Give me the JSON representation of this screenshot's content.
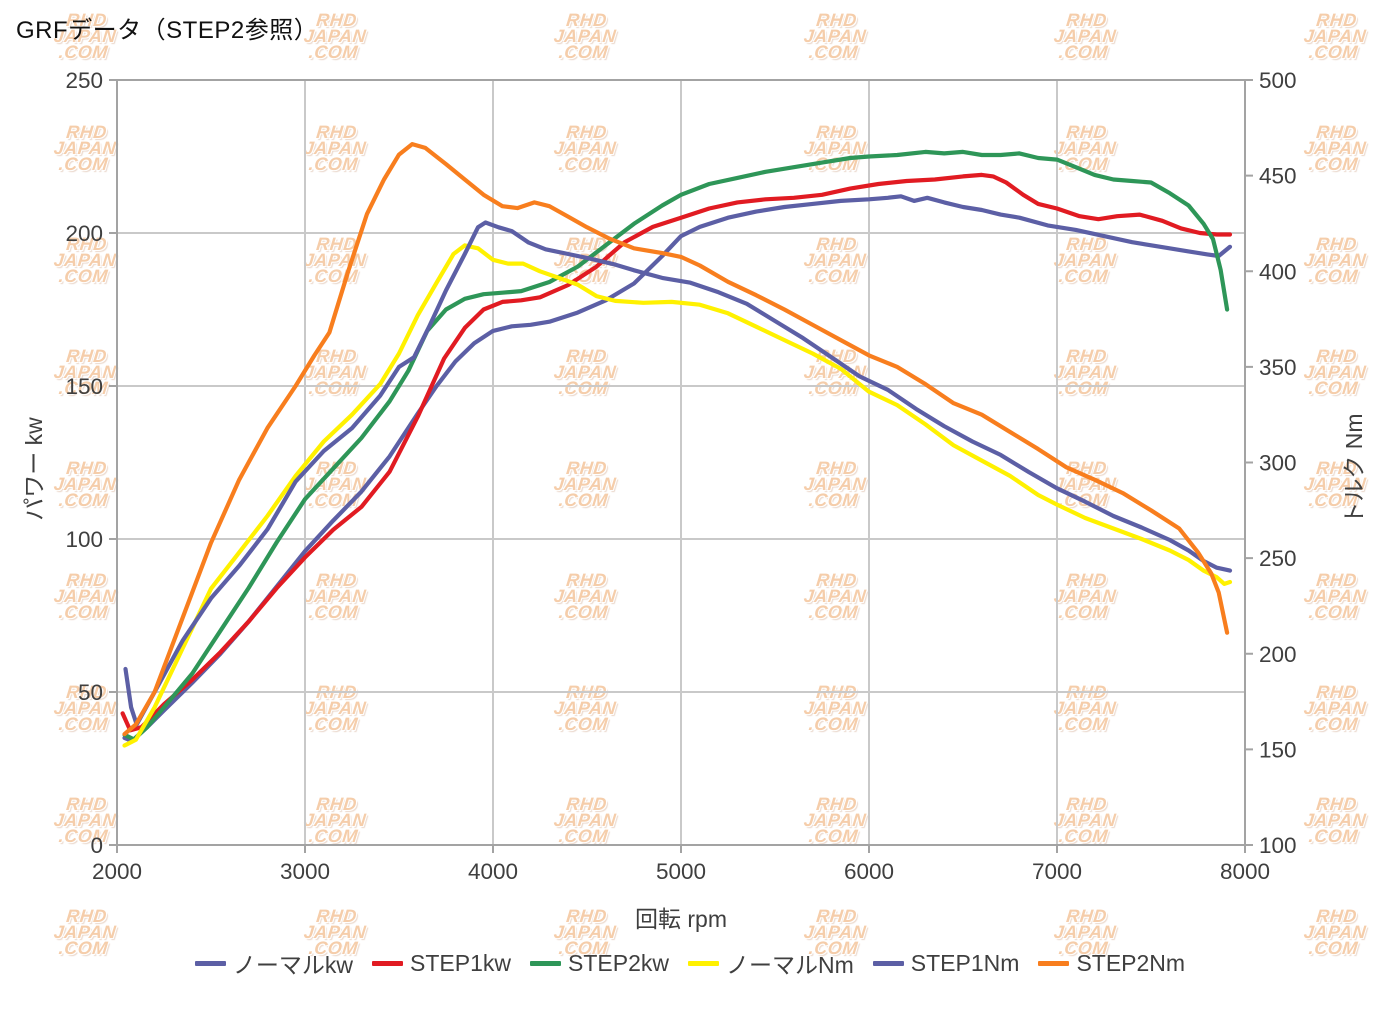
{
  "title": "GRFデータ（STEP2参照）",
  "watermark": {
    "lines": [
      "RHD",
      "JAPAN",
      ".COM"
    ]
  },
  "colors": {
    "grid": "#c9c9c9",
    "plot_border": "#a3a3a3",
    "tick": "#a3a3a3",
    "text": "#3f3f3f"
  },
  "chart_data": {
    "type": "line",
    "title": "GRFデータ（STEP2参照）",
    "grid": true,
    "legend_position": "bottom",
    "x_axis": {
      "label": "回転 rpm",
      "min": 2000,
      "max": 8000,
      "ticks": [
        2000,
        3000,
        4000,
        5000,
        6000,
        7000,
        8000
      ]
    },
    "y_left_axis": {
      "label": "パワー kw",
      "min": 0,
      "max": 250,
      "ticks": [
        0,
        50,
        100,
        150,
        200,
        250
      ]
    },
    "y_right_axis": {
      "label": "トルク Nm",
      "min": 100,
      "max": 500,
      "ticks": [
        100,
        150,
        200,
        250,
        300,
        350,
        400,
        450,
        500
      ]
    },
    "series": [
      {
        "name": "ノーマルkw",
        "axis": "left",
        "color": "#5c5fa5",
        "unit": "kW",
        "points": [
          [
            2040,
            35
          ],
          [
            2080,
            34
          ],
          [
            2160,
            38.5
          ],
          [
            2250,
            44
          ],
          [
            2400,
            53
          ],
          [
            2550,
            62.5
          ],
          [
            2700,
            73
          ],
          [
            2850,
            84.5
          ],
          [
            3000,
            96
          ],
          [
            3150,
            106
          ],
          [
            3300,
            115.5
          ],
          [
            3450,
            127
          ],
          [
            3600,
            141
          ],
          [
            3700,
            150
          ],
          [
            3800,
            158
          ],
          [
            3900,
            164
          ],
          [
            4000,
            168
          ],
          [
            4100,
            169.5
          ],
          [
            4200,
            170
          ],
          [
            4300,
            171
          ],
          [
            4450,
            174
          ],
          [
            4600,
            178
          ],
          [
            4750,
            183.5
          ],
          [
            4900,
            192.5
          ],
          [
            5000,
            199
          ],
          [
            5100,
            202
          ],
          [
            5250,
            205
          ],
          [
            5400,
            207
          ],
          [
            5550,
            208.5
          ],
          [
            5700,
            209.5
          ],
          [
            5850,
            210.5
          ],
          [
            6000,
            211
          ],
          [
            6100,
            211.5
          ],
          [
            6170,
            212
          ],
          [
            6240,
            210.5
          ],
          [
            6310,
            211.5
          ],
          [
            6400,
            210
          ],
          [
            6500,
            208.5
          ],
          [
            6600,
            207.5
          ],
          [
            6700,
            206
          ],
          [
            6800,
            205
          ],
          [
            6950,
            202.5
          ],
          [
            7100,
            201
          ],
          [
            7250,
            199
          ],
          [
            7400,
            197
          ],
          [
            7550,
            195.5
          ],
          [
            7700,
            194
          ],
          [
            7800,
            193
          ],
          [
            7860,
            192.5
          ],
          [
            7920,
            195.5
          ]
        ]
      },
      {
        "name": "STEP1kw",
        "axis": "left",
        "color": "#e11b22",
        "unit": "kW",
        "points": [
          [
            2030,
            43
          ],
          [
            2070,
            37.5
          ],
          [
            2130,
            38.5
          ],
          [
            2250,
            46
          ],
          [
            2400,
            54
          ],
          [
            2550,
            63
          ],
          [
            2700,
            73
          ],
          [
            2850,
            84
          ],
          [
            3000,
            94
          ],
          [
            3150,
            103
          ],
          [
            3300,
            110.5
          ],
          [
            3450,
            122
          ],
          [
            3600,
            140
          ],
          [
            3740,
            159
          ],
          [
            3850,
            169
          ],
          [
            3950,
            175
          ],
          [
            4050,
            177.5
          ],
          [
            4150,
            178
          ],
          [
            4250,
            179
          ],
          [
            4400,
            183
          ],
          [
            4550,
            189
          ],
          [
            4700,
            197
          ],
          [
            4850,
            202
          ],
          [
            5000,
            205
          ],
          [
            5150,
            208
          ],
          [
            5300,
            210
          ],
          [
            5450,
            211
          ],
          [
            5600,
            211.5
          ],
          [
            5750,
            212.5
          ],
          [
            5900,
            214.5
          ],
          [
            6050,
            216
          ],
          [
            6200,
            217
          ],
          [
            6350,
            217.5
          ],
          [
            6500,
            218.5
          ],
          [
            6600,
            219
          ],
          [
            6660,
            218.5
          ],
          [
            6730,
            216.5
          ],
          [
            6820,
            212.5
          ],
          [
            6900,
            209.5
          ],
          [
            7000,
            208
          ],
          [
            7120,
            205.5
          ],
          [
            7220,
            204.5
          ],
          [
            7320,
            205.5
          ],
          [
            7440,
            206
          ],
          [
            7560,
            204
          ],
          [
            7660,
            201.5
          ],
          [
            7760,
            200
          ],
          [
            7850,
            199.5
          ],
          [
            7920,
            199.5
          ]
        ]
      },
      {
        "name": "STEP2kw",
        "axis": "left",
        "color": "#2e9658",
        "unit": "kW",
        "points": [
          [
            2040,
            36
          ],
          [
            2090,
            34.5
          ],
          [
            2160,
            38.5
          ],
          [
            2250,
            45
          ],
          [
            2400,
            56
          ],
          [
            2550,
            70
          ],
          [
            2700,
            84
          ],
          [
            2850,
            99
          ],
          [
            3000,
            113
          ],
          [
            3150,
            123
          ],
          [
            3300,
            133
          ],
          [
            3450,
            145
          ],
          [
            3550,
            155
          ],
          [
            3650,
            168
          ],
          [
            3750,
            175
          ],
          [
            3850,
            178.5
          ],
          [
            3950,
            180
          ],
          [
            4050,
            180.5
          ],
          [
            4150,
            181
          ],
          [
            4300,
            184
          ],
          [
            4450,
            189
          ],
          [
            4600,
            196
          ],
          [
            4750,
            203
          ],
          [
            4900,
            209
          ],
          [
            5000,
            212.5
          ],
          [
            5150,
            216
          ],
          [
            5300,
            218
          ],
          [
            5450,
            220
          ],
          [
            5600,
            221.5
          ],
          [
            5750,
            223
          ],
          [
            5900,
            224.5
          ],
          [
            6000,
            225
          ],
          [
            6150,
            225.5
          ],
          [
            6300,
            226.5
          ],
          [
            6400,
            226
          ],
          [
            6500,
            226.5
          ],
          [
            6600,
            225.5
          ],
          [
            6700,
            225.5
          ],
          [
            6800,
            226
          ],
          [
            6900,
            224.5
          ],
          [
            7000,
            224
          ],
          [
            7100,
            221.5
          ],
          [
            7200,
            219
          ],
          [
            7300,
            217.5
          ],
          [
            7400,
            217
          ],
          [
            7500,
            216.5
          ],
          [
            7600,
            213
          ],
          [
            7700,
            209
          ],
          [
            7780,
            203
          ],
          [
            7830,
            198
          ],
          [
            7870,
            188
          ],
          [
            7905,
            175
          ]
        ]
      },
      {
        "name": "ノーマルNm",
        "axis": "right",
        "color": "#fff100",
        "unit": "Nm",
        "points": [
          [
            2040,
            152
          ],
          [
            2100,
            155
          ],
          [
            2200,
            172
          ],
          [
            2350,
            203
          ],
          [
            2500,
            234
          ],
          [
            2650,
            253
          ],
          [
            2800,
            272
          ],
          [
            2950,
            293
          ],
          [
            3100,
            311
          ],
          [
            3250,
            325
          ],
          [
            3400,
            341
          ],
          [
            3500,
            357
          ],
          [
            3600,
            377
          ],
          [
            3700,
            394
          ],
          [
            3790,
            409
          ],
          [
            3850,
            413.5
          ],
          [
            3920,
            412
          ],
          [
            4000,
            406
          ],
          [
            4080,
            404
          ],
          [
            4160,
            404
          ],
          [
            4250,
            400
          ],
          [
            4350,
            396.5
          ],
          [
            4450,
            393
          ],
          [
            4550,
            387
          ],
          [
            4650,
            384.5
          ],
          [
            4800,
            383.5
          ],
          [
            4950,
            384
          ],
          [
            5100,
            382.5
          ],
          [
            5250,
            378
          ],
          [
            5400,
            371
          ],
          [
            5550,
            364
          ],
          [
            5700,
            357
          ],
          [
            5850,
            349
          ],
          [
            6000,
            337
          ],
          [
            6150,
            330
          ],
          [
            6300,
            320
          ],
          [
            6450,
            309
          ],
          [
            6600,
            301
          ],
          [
            6750,
            293
          ],
          [
            6900,
            283
          ],
          [
            7000,
            278
          ],
          [
            7150,
            271
          ],
          [
            7300,
            265.5
          ],
          [
            7450,
            260
          ],
          [
            7600,
            254
          ],
          [
            7700,
            249
          ],
          [
            7780,
            243.5
          ],
          [
            7850,
            240
          ],
          [
            7890,
            236.5
          ],
          [
            7920,
            237.5
          ]
        ]
      },
      {
        "name": "STEP1Nm",
        "axis": "right",
        "color": "#5c5fa5",
        "unit": "Nm",
        "points": [
          [
            2045,
            192
          ],
          [
            2075,
            172
          ],
          [
            2105,
            163
          ],
          [
            2200,
            180
          ],
          [
            2350,
            207
          ],
          [
            2500,
            229
          ],
          [
            2650,
            246
          ],
          [
            2800,
            265
          ],
          [
            2950,
            290
          ],
          [
            3100,
            306
          ],
          [
            3250,
            318
          ],
          [
            3400,
            335
          ],
          [
            3500,
            350
          ],
          [
            3580,
            355
          ],
          [
            3660,
            371
          ],
          [
            3750,
            390
          ],
          [
            3850,
            409
          ],
          [
            3920,
            423
          ],
          [
            3960,
            425.5
          ],
          [
            4030,
            423
          ],
          [
            4100,
            421
          ],
          [
            4190,
            415
          ],
          [
            4280,
            411.5
          ],
          [
            4400,
            409
          ],
          [
            4520,
            406.5
          ],
          [
            4650,
            403.5
          ],
          [
            4750,
            400.5
          ],
          [
            4900,
            396.5
          ],
          [
            5050,
            394
          ],
          [
            5200,
            389
          ],
          [
            5350,
            383
          ],
          [
            5500,
            374
          ],
          [
            5650,
            365
          ],
          [
            5800,
            355
          ],
          [
            5950,
            345
          ],
          [
            6100,
            338
          ],
          [
            6250,
            328
          ],
          [
            6400,
            319
          ],
          [
            6550,
            311
          ],
          [
            6700,
            304
          ],
          [
            6850,
            295
          ],
          [
            7000,
            286.5
          ],
          [
            7150,
            279.5
          ],
          [
            7300,
            272
          ],
          [
            7450,
            266
          ],
          [
            7600,
            259.5
          ],
          [
            7700,
            254
          ],
          [
            7780,
            248.5
          ],
          [
            7850,
            245
          ],
          [
            7920,
            243.5
          ]
        ]
      },
      {
        "name": "STEP2Nm",
        "axis": "right",
        "color": "#f87e1e",
        "unit": "Nm",
        "points": [
          [
            2040,
            158
          ],
          [
            2100,
            163
          ],
          [
            2200,
            180
          ],
          [
            2350,
            219
          ],
          [
            2500,
            258
          ],
          [
            2650,
            291
          ],
          [
            2800,
            318
          ],
          [
            2950,
            340
          ],
          [
            3050,
            356
          ],
          [
            3130,
            368
          ],
          [
            3230,
            400
          ],
          [
            3330,
            430
          ],
          [
            3420,
            448
          ],
          [
            3500,
            461
          ],
          [
            3570,
            466.5
          ],
          [
            3640,
            464.5
          ],
          [
            3750,
            456
          ],
          [
            3850,
            448
          ],
          [
            3950,
            440
          ],
          [
            4050,
            434
          ],
          [
            4130,
            433
          ],
          [
            4220,
            436
          ],
          [
            4300,
            434
          ],
          [
            4400,
            428.5
          ],
          [
            4500,
            423
          ],
          [
            4620,
            417
          ],
          [
            4750,
            412
          ],
          [
            4900,
            409.5
          ],
          [
            5000,
            407.5
          ],
          [
            5100,
            403
          ],
          [
            5250,
            394.5
          ],
          [
            5400,
            387.5
          ],
          [
            5550,
            380
          ],
          [
            5700,
            372
          ],
          [
            5850,
            364
          ],
          [
            6000,
            356
          ],
          [
            6150,
            350
          ],
          [
            6300,
            341
          ],
          [
            6450,
            331
          ],
          [
            6600,
            325
          ],
          [
            6750,
            316
          ],
          [
            6900,
            307
          ],
          [
            7050,
            297.5
          ],
          [
            7200,
            291
          ],
          [
            7350,
            284
          ],
          [
            7500,
            275
          ],
          [
            7650,
            265.5
          ],
          [
            7750,
            253
          ],
          [
            7820,
            242
          ],
          [
            7860,
            232
          ],
          [
            7905,
            211
          ]
        ]
      }
    ]
  }
}
